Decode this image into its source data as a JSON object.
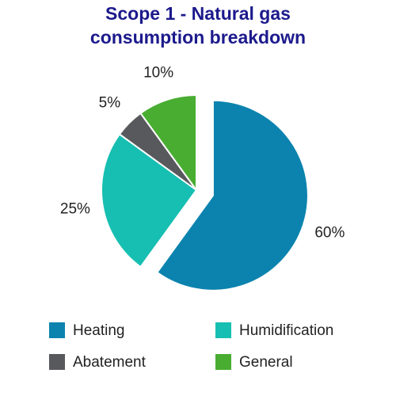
{
  "chart_data": {
    "type": "pie",
    "title": "Scope 1 - Natural gas consumption breakdown",
    "categories": [
      "Heating",
      "Humidification",
      "Abatement",
      "General"
    ],
    "values": [
      60,
      25,
      5,
      10
    ],
    "value_labels": [
      "60%",
      "25%",
      "5%",
      "10%"
    ],
    "colors": [
      "#0b83ae",
      "#16bfb1",
      "#58595d",
      "#49ad32"
    ]
  }
}
